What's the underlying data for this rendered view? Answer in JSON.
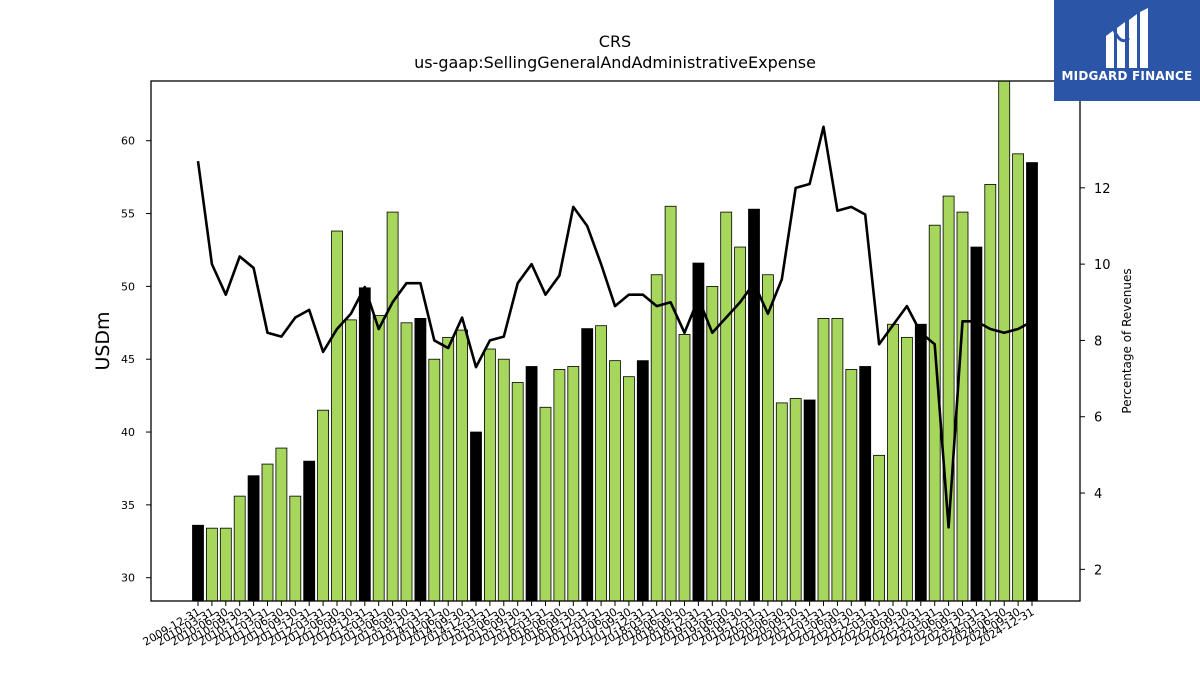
{
  "logo": {
    "text": "MIDGARD FINANCE"
  },
  "chart_data": {
    "type": "bar",
    "title": "CRS",
    "subtitle": "us-gaap:SellingGeneralAndAdministrativeExpense",
    "ylabel": "USDm",
    "y2label": "Percentage of Revenues",
    "ylim": [
      28.4,
      64.1
    ],
    "y2lim": [
      1.17,
      14.8
    ],
    "yticks": [
      30,
      35,
      40,
      45,
      50,
      55,
      60
    ],
    "y2ticks": [
      2,
      4,
      6,
      8,
      10,
      12
    ],
    "colors": {
      "quarter_bar": "#a6d65c",
      "fiscal_year_bar": "#000000",
      "line": "#000000"
    },
    "categories": [
      "2009-12-31",
      "2010-03-31",
      "2010-06-30",
      "2010-09-30",
      "2010-12-31",
      "2011-03-31",
      "2011-06-30",
      "2011-09-30",
      "2011-12-31",
      "2012-03-31",
      "2012-06-30",
      "2012-09-30",
      "2012-12-31",
      "2013-03-31",
      "2013-06-30",
      "2013-09-30",
      "2013-12-31",
      "2014-03-31",
      "2014-06-30",
      "2014-09-30",
      "2014-12-31",
      "2015-03-31",
      "2015-06-30",
      "2015-09-30",
      "2015-12-31",
      "2016-03-31",
      "2016-06-30",
      "2016-09-30",
      "2016-12-31",
      "2017-03-31",
      "2017-06-30",
      "2017-09-30",
      "2017-12-31",
      "2018-03-31",
      "2018-06-30",
      "2018-09-30",
      "2018-12-31",
      "2019-03-31",
      "2019-06-30",
      "2019-09-30",
      "2019-12-31",
      "2020-03-31",
      "2020-06-30",
      "2020-09-30",
      "2020-12-31",
      "2021-03-31",
      "2021-06-30",
      "2021-09-30",
      "2021-12-31",
      "2022-03-31",
      "2022-06-30",
      "2022-09-30",
      "2022-12-31",
      "2023-03-31",
      "2023-06-30",
      "2023-09-30",
      "2023-12-31",
      "2024-03-31",
      "2024-06-30",
      "2024-09-30",
      "2024-12-31"
    ],
    "series": [
      {
        "values": [
          33.6,
          33.4,
          33.4,
          35.6,
          37.0,
          37.8,
          38.9,
          35.6,
          38.0,
          41.5,
          53.8,
          47.7,
          49.9,
          48.0,
          55.1,
          47.5,
          47.8,
          45.0,
          46.5,
          47.0,
          40.0,
          45.7,
          45.0,
          43.4,
          44.5,
          41.7,
          44.3,
          44.5,
          47.1,
          47.3,
          44.9,
          43.8,
          44.9,
          50.8,
          55.5,
          46.7,
          51.6,
          50.0,
          55.1,
          52.7,
          55.3,
          50.8,
          42.0,
          42.3,
          42.2,
          47.8,
          47.8,
          44.3,
          44.5,
          38.4,
          47.4,
          46.5,
          47.4,
          54.2,
          56.2,
          55.1,
          52.7,
          57.0,
          64.1,
          59.1,
          58.5
        ],
        "fiscal_year_end": [
          true,
          false,
          false,
          false,
          true,
          false,
          false,
          false,
          true,
          false,
          false,
          false,
          true,
          false,
          false,
          false,
          true,
          false,
          false,
          false,
          true,
          false,
          false,
          false,
          true,
          false,
          false,
          false,
          true,
          false,
          false,
          false,
          true,
          false,
          false,
          false,
          true,
          false,
          false,
          false,
          true,
          false,
          false,
          false,
          true,
          false,
          false,
          false,
          true,
          false,
          false,
          false,
          true,
          false,
          false,
          false,
          true,
          false,
          false,
          false,
          true
        ]
      },
      {
        "name": "Percentage of Revenues",
        "axis": "right",
        "values": [
          12.7,
          10.0,
          9.2,
          10.2,
          9.9,
          8.2,
          8.1,
          8.6,
          8.8,
          7.7,
          8.3,
          8.7,
          9.4,
          8.3,
          9.0,
          9.5,
          9.5,
          8.0,
          7.8,
          8.6,
          7.3,
          8.0,
          8.1,
          9.5,
          10.0,
          9.2,
          9.7,
          11.5,
          11.0,
          10.0,
          8.9,
          9.2,
          9.2,
          8.9,
          9.0,
          8.2,
          9.1,
          8.2,
          8.6,
          9.0,
          9.5,
          8.7,
          9.6,
          12.0,
          12.1,
          13.6,
          11.4,
          11.5,
          11.3,
          7.9,
          8.4,
          8.9,
          8.2,
          7.9,
          3.1,
          8.5,
          8.5,
          8.3,
          8.2,
          8.3,
          8.5
        ]
      }
    ],
    "legend": "none",
    "grid": false
  }
}
